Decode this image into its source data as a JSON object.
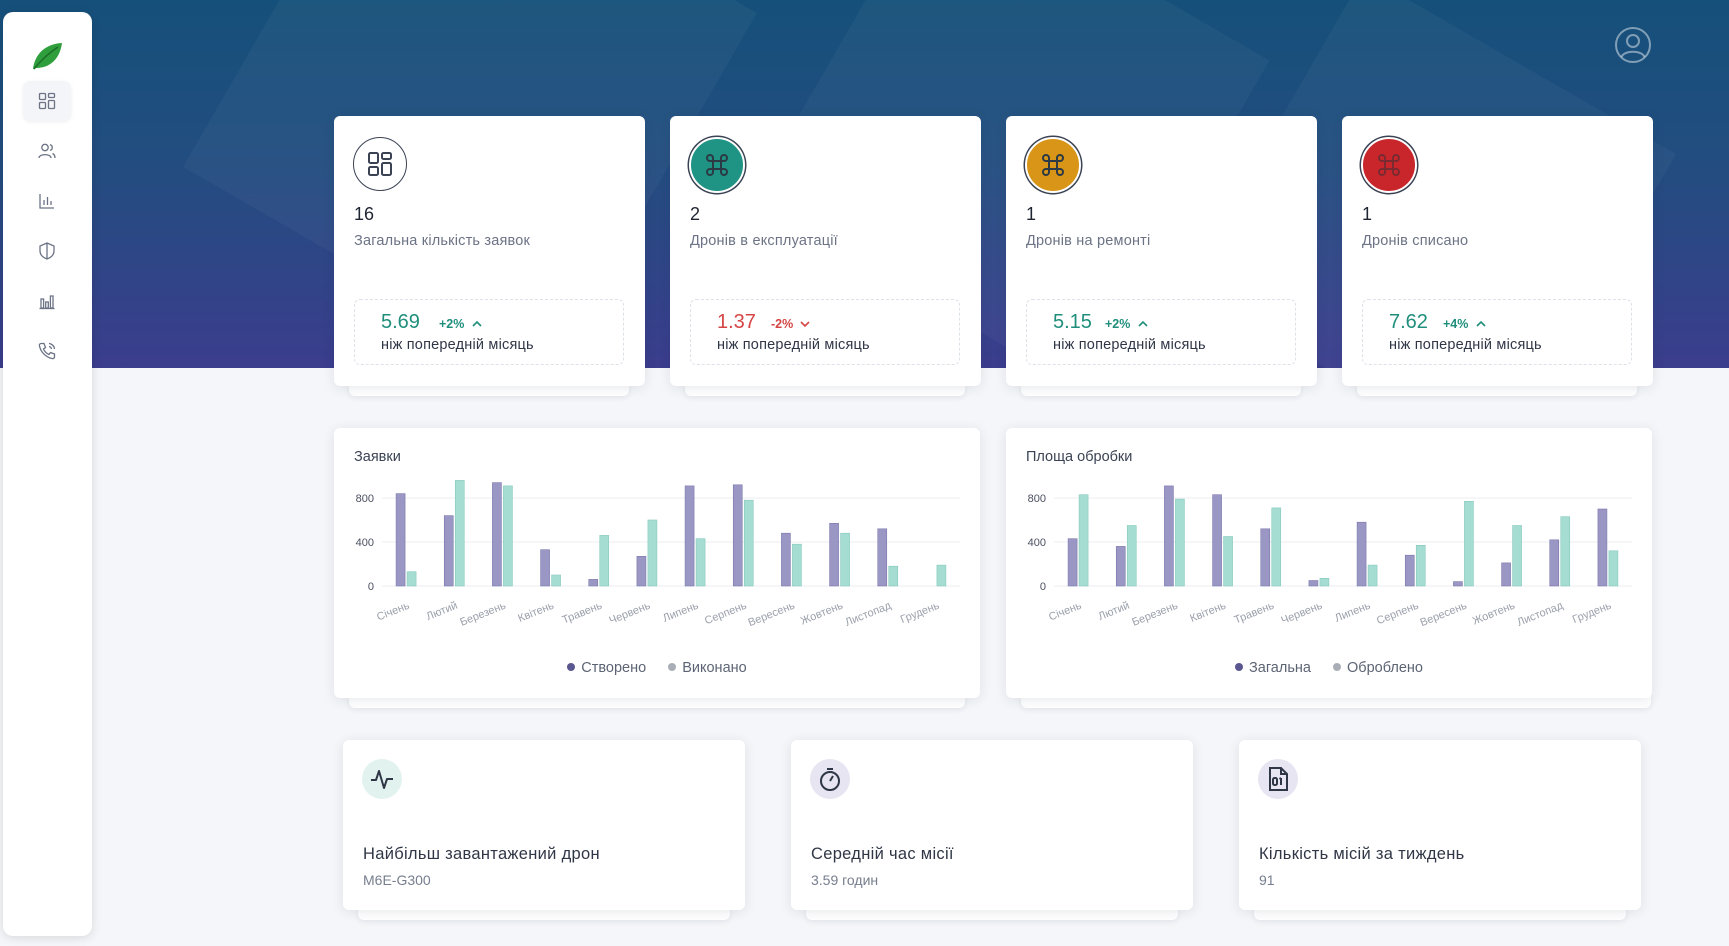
{
  "colors": {
    "accent_teal": "#1f8f7c",
    "negative": "#d64545",
    "bar_primary": "#9a97c4",
    "bar_secondary": "#a6ddd3",
    "icon_teal": "#1f9384",
    "icon_amber": "#d99518",
    "icon_red": "#c8262b"
  },
  "sidebar": {
    "logo": "leaf-icon",
    "items": [
      {
        "icon": "dashboard-grid-icon",
        "active": true
      },
      {
        "icon": "users-icon",
        "active": false
      },
      {
        "icon": "bar-chart-icon",
        "active": false
      },
      {
        "icon": "shield-icon",
        "active": false
      },
      {
        "icon": "column-chart-icon",
        "active": false
      },
      {
        "icon": "phone-icon",
        "active": false
      }
    ]
  },
  "header": {
    "avatar_icon": "user-circle-icon"
  },
  "stats": [
    {
      "value": "16",
      "label": "Загальна кількість заявок",
      "trend_value": "5.69",
      "trend_pct": "+2%",
      "direction": "up",
      "trend_text": "ніж попередній місяць",
      "icon": "grid-icon"
    },
    {
      "value": "2",
      "label": "Дронів в експлуатації",
      "trend_value": "1.37",
      "trend_pct": "-2%",
      "direction": "down",
      "trend_text": "ніж попередній місяць",
      "icon": "command-icon"
    },
    {
      "value": "1",
      "label": "Дронів на ремонті",
      "trend_value": "5.15",
      "trend_pct": "+2%",
      "direction": "up",
      "trend_text": "ніж попередній місяць",
      "icon": "command-icon"
    },
    {
      "value": "1",
      "label": "Дронів списано",
      "trend_value": "7.62",
      "trend_pct": "+4%",
      "direction": "up",
      "trend_text": "ніж попередній місяць",
      "icon": "command-icon"
    }
  ],
  "chart_data": [
    {
      "type": "bar",
      "title": "Заявки",
      "categories": [
        "Січень",
        "Лютий",
        "Березень",
        "Квітень",
        "Травень",
        "Червень",
        "Липень",
        "Серпень",
        "Вересень",
        "Жовтень",
        "Листопад",
        "Грудень"
      ],
      "yticks": [
        0,
        400,
        800
      ],
      "ylim": [
        0,
        1000
      ],
      "legend_position": "bottom",
      "grid": true,
      "series": [
        {
          "name": "Створено",
          "values": [
            840,
            640,
            940,
            330,
            60,
            270,
            910,
            920,
            480,
            570,
            520,
            0
          ]
        },
        {
          "name": "Виконано",
          "values": [
            130,
            960,
            910,
            100,
            460,
            600,
            430,
            780,
            380,
            480,
            180,
            190
          ]
        }
      ]
    },
    {
      "type": "bar",
      "title": "Площа обробки",
      "categories": [
        "Січень",
        "Лютий",
        "Березень",
        "Квітень",
        "Травень",
        "Червень",
        "Липень",
        "Серпень",
        "Вересень",
        "Жовтень",
        "Листопад",
        "Грудень"
      ],
      "yticks": [
        0,
        400,
        800
      ],
      "ylim": [
        0,
        1000
      ],
      "legend_position": "bottom",
      "grid": true,
      "series": [
        {
          "name": "Загальна",
          "values": [
            430,
            360,
            910,
            830,
            520,
            50,
            580,
            280,
            40,
            210,
            420,
            700
          ]
        },
        {
          "name": "Оброблено",
          "values": [
            830,
            550,
            790,
            450,
            710,
            70,
            190,
            370,
            770,
            550,
            630,
            320
          ]
        }
      ]
    }
  ],
  "info_cards": [
    {
      "title": "Найбільш завантажений дрон",
      "value": "M6E-G300",
      "icon": "pulse-icon"
    },
    {
      "title": "Середній час місії",
      "value": "3.59 годин",
      "icon": "stopwatch-icon"
    },
    {
      "title": "Кількість місій за тиждень",
      "value": "91",
      "icon": "binary-file-icon"
    }
  ]
}
